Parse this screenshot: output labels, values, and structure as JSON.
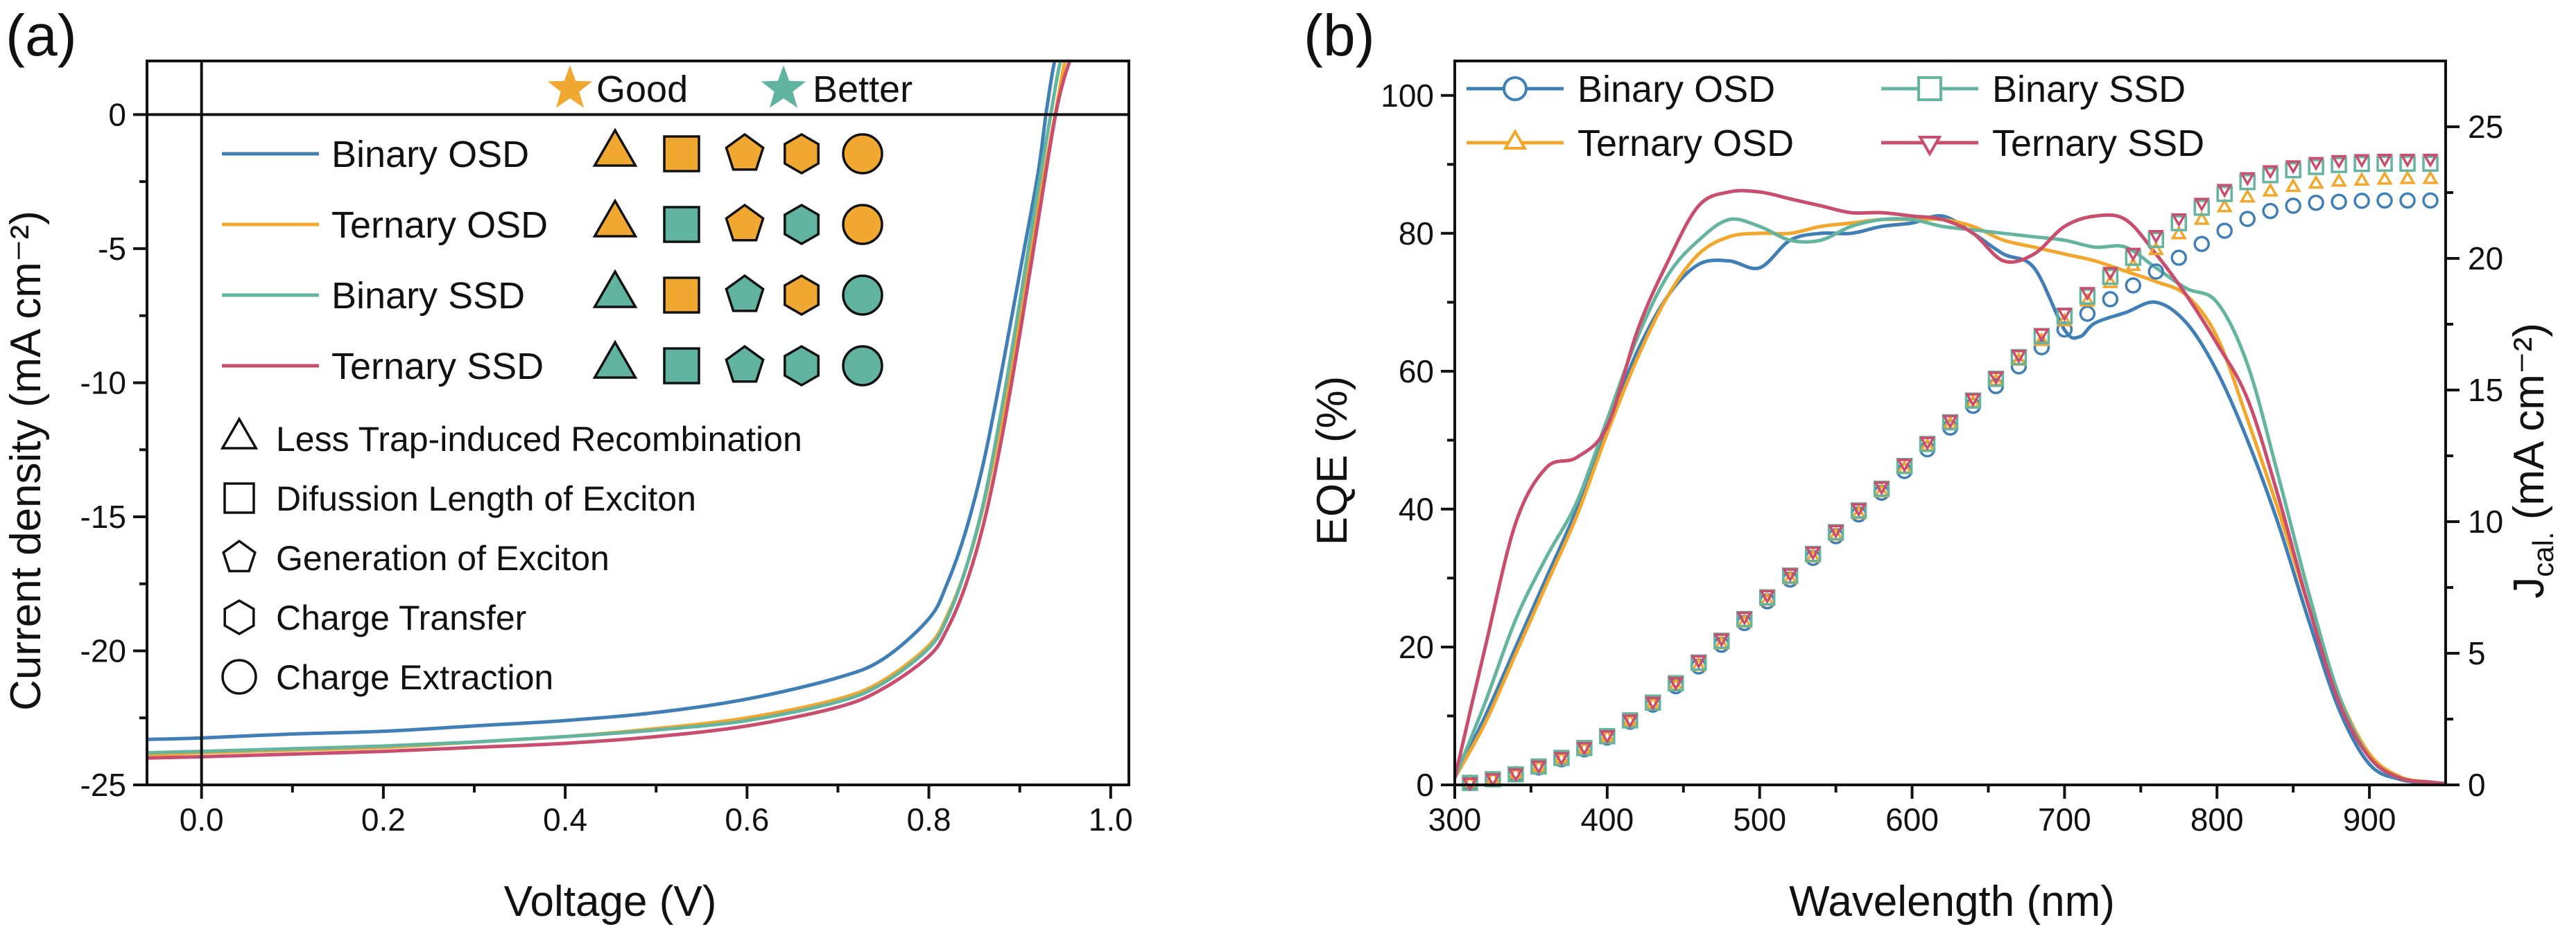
{
  "colors": {
    "binary_osd": "#3f7fb5",
    "ternary_osd": "#f2a72c",
    "binary_ssd": "#64b4a0",
    "ternary_ssd": "#c94d6d",
    "good": "#f0a830",
    "better": "#5fb39f"
  },
  "chart_data": [
    {
      "panel": "(a)",
      "type": "line",
      "xlabel": "Voltage (V)",
      "ylabel": "Current density (mA cm⁻²)",
      "xlim": [
        -0.06,
        1.02
      ],
      "ylim": [
        -25,
        2
      ],
      "xticks": [
        "0.0",
        "0.2",
        "0.4",
        "0.6",
        "0.8",
        "1.0"
      ],
      "xtick_values": [
        0.0,
        0.2,
        0.4,
        0.6,
        0.8,
        1.0
      ],
      "yticks": [
        "0",
        "-5",
        "-10",
        "-15",
        "-20",
        "-25"
      ],
      "ytick_values": [
        0,
        -5,
        -10,
        -15,
        -20,
        -25
      ],
      "grid": false,
      "legend_position": "top-left inside",
      "key_labels": {
        "good": "Good",
        "better": "Better"
      },
      "series": [
        {
          "name": "Binary OSD",
          "color_key": "binary_osd",
          "x": [
            -0.06,
            0.0,
            0.1,
            0.2,
            0.3,
            0.4,
            0.5,
            0.6,
            0.7,
            0.75,
            0.8,
            0.82,
            0.84,
            0.86,
            0.88,
            0.9,
            0.92,
            0.93,
            0.94,
            0.95
          ],
          "y": [
            -23.3,
            -23.25,
            -23.1,
            -23.0,
            -22.8,
            -22.6,
            -22.3,
            -21.8,
            -21.0,
            -20.3,
            -18.8,
            -17.5,
            -15.6,
            -13.0,
            -9.6,
            -5.9,
            -2.2,
            0.3,
            2.2,
            2.5
          ],
          "markers": {
            "triangle": "good",
            "square": "good",
            "pentagon": "good",
            "hexagon": "good",
            "circle": "good"
          }
        },
        {
          "name": "Ternary OSD",
          "color_key": "ternary_osd",
          "x": [
            -0.06,
            0.0,
            0.1,
            0.2,
            0.3,
            0.4,
            0.5,
            0.6,
            0.7,
            0.75,
            0.8,
            0.82,
            0.84,
            0.86,
            0.88,
            0.9,
            0.92,
            0.94,
            0.95,
            0.96
          ],
          "y": [
            -23.9,
            -23.8,
            -23.7,
            -23.6,
            -23.4,
            -23.2,
            -22.9,
            -22.5,
            -21.8,
            -21.1,
            -19.8,
            -18.7,
            -17.0,
            -14.6,
            -11.4,
            -7.6,
            -3.5,
            0.2,
            2.0,
            2.5
          ],
          "markers": {
            "triangle": "good",
            "square": "better",
            "pentagon": "good",
            "hexagon": "better",
            "circle": "good"
          }
        },
        {
          "name": "Binary SSD",
          "color_key": "binary_ssd",
          "x": [
            -0.06,
            0.0,
            0.1,
            0.2,
            0.3,
            0.4,
            0.5,
            0.6,
            0.7,
            0.75,
            0.8,
            0.82,
            0.84,
            0.86,
            0.88,
            0.9,
            0.92,
            0.935,
            0.945,
            0.955
          ],
          "y": [
            -23.8,
            -23.75,
            -23.65,
            -23.55,
            -23.4,
            -23.2,
            -22.95,
            -22.6,
            -21.9,
            -21.2,
            -19.9,
            -18.8,
            -17.0,
            -14.5,
            -11.0,
            -7.0,
            -2.8,
            0.2,
            2.0,
            2.5
          ],
          "markers": {
            "triangle": "better",
            "square": "good",
            "pentagon": "better",
            "hexagon": "good",
            "circle": "better"
          }
        },
        {
          "name": "Ternary SSD",
          "color_key": "ternary_ssd",
          "x": [
            -0.06,
            0.0,
            0.1,
            0.2,
            0.3,
            0.4,
            0.5,
            0.6,
            0.7,
            0.75,
            0.8,
            0.82,
            0.84,
            0.86,
            0.88,
            0.9,
            0.92,
            0.94,
            0.955,
            0.965
          ],
          "y": [
            -24.0,
            -23.95,
            -23.85,
            -23.75,
            -23.6,
            -23.45,
            -23.2,
            -22.8,
            -22.1,
            -21.4,
            -20.2,
            -19.2,
            -17.6,
            -15.3,
            -12.1,
            -8.2,
            -4.0,
            0.1,
            2.0,
            2.5
          ],
          "markers": {
            "triangle": "better",
            "square": "better",
            "pentagon": "better",
            "hexagon": "better",
            "circle": "better"
          }
        }
      ],
      "notes": [
        {
          "shape": "triangle",
          "text": "Less Trap-induced Recombination"
        },
        {
          "shape": "square",
          "text": "Difussion Length of Exciton"
        },
        {
          "shape": "pentagon",
          "text": "Generation of Exciton"
        },
        {
          "shape": "hexagon",
          "text": "Charge Transfer"
        },
        {
          "shape": "circle",
          "text": "Charge Extraction"
        }
      ]
    },
    {
      "panel": "(b)",
      "type": "line",
      "xlabel": "Wavelength (nm)",
      "ylabel": "EQE (%)",
      "y2label": "J",
      "y2label_sub": "cal.",
      "y2label_unit": " (mA cm⁻²)",
      "xlim": [
        300,
        950
      ],
      "ylim": [
        0,
        105
      ],
      "y2lim": [
        0,
        27.5
      ],
      "xticks": [
        "300",
        "400",
        "500",
        "600",
        "700",
        "800",
        "900"
      ],
      "xtick_values": [
        300,
        400,
        500,
        600,
        700,
        800,
        900
      ],
      "yticks": [
        "0",
        "20",
        "40",
        "60",
        "80",
        "100"
      ],
      "ytick_values": [
        0,
        20,
        40,
        60,
        80,
        100
      ],
      "y2ticks": [
        "0",
        "5",
        "10",
        "15",
        "20",
        "25"
      ],
      "y2tick_values": [
        0,
        5,
        10,
        15,
        20,
        25
      ],
      "grid": false,
      "legend_position": "top inside, two columns",
      "series": [
        {
          "name": "Binary OSD",
          "color_key": "binary_osd",
          "marker": "circle",
          "x": [
            300,
            320,
            340,
            360,
            380,
            400,
            420,
            440,
            460,
            480,
            500,
            520,
            540,
            560,
            580,
            600,
            620,
            640,
            660,
            680,
            700,
            710,
            720,
            740,
            760,
            780,
            800,
            820,
            840,
            860,
            880,
            900,
            920,
            940,
            950
          ],
          "eqe": [
            1,
            10,
            20,
            30,
            40,
            52,
            63,
            71,
            75.5,
            76,
            75,
            79,
            80,
            80,
            81,
            81.5,
            82.5,
            80,
            77,
            75,
            66,
            65,
            67,
            68.5,
            70,
            67,
            60,
            50,
            38,
            24,
            11,
            3,
            0.8,
            0.3,
            0.2
          ],
          "jsc": [
            0,
            0.15,
            0.4,
            0.75,
            1.2,
            1.8,
            2.6,
            3.5,
            4.5,
            5.6,
            6.7,
            7.8,
            8.9,
            10.0,
            11.1,
            12.2,
            13.3,
            14.4,
            15.4,
            16.4,
            17.3,
            17.7,
            18.1,
            18.8,
            19.5,
            20.2,
            20.9,
            21.5,
            21.9,
            22.1,
            22.15,
            22.2,
            22.2,
            22.2,
            22.2
          ]
        },
        {
          "name": "Ternary OSD",
          "color_key": "ternary_osd",
          "marker": "triangle-up",
          "x": [
            300,
            320,
            340,
            360,
            380,
            400,
            420,
            440,
            460,
            480,
            500,
            520,
            540,
            560,
            580,
            600,
            620,
            640,
            660,
            680,
            700,
            720,
            740,
            760,
            780,
            800,
            820,
            840,
            860,
            880,
            900,
            920,
            940,
            950
          ],
          "eqe": [
            1,
            9,
            19,
            29,
            39,
            51,
            62,
            71,
            77,
            79.5,
            80,
            80,
            81,
            81.5,
            82,
            82,
            82,
            81,
            79,
            78,
            77,
            76,
            74.5,
            73,
            71,
            65,
            53,
            40,
            26,
            13,
            4.5,
            1.2,
            0.4,
            0.2
          ],
          "jsc": [
            0,
            0.15,
            0.4,
            0.75,
            1.2,
            1.8,
            2.6,
            3.5,
            4.5,
            5.6,
            6.7,
            7.8,
            8.9,
            10.0,
            11.1,
            12.3,
            13.4,
            14.5,
            15.6,
            16.6,
            17.6,
            18.6,
            19.5,
            20.3,
            21.1,
            21.8,
            22.3,
            22.6,
            22.8,
            22.9,
            22.95,
            23.0,
            23.0,
            23.0
          ]
        },
        {
          "name": "Binary SSD",
          "color_key": "binary_ssd",
          "marker": "square",
          "x": [
            300,
            320,
            340,
            360,
            380,
            400,
            420,
            440,
            460,
            480,
            500,
            520,
            540,
            560,
            580,
            600,
            620,
            640,
            660,
            680,
            700,
            720,
            740,
            760,
            780,
            800,
            820,
            840,
            860,
            880,
            900,
            920,
            940,
            950
          ],
          "eqe": [
            1,
            12,
            24,
            33,
            41,
            53,
            65,
            74,
            79,
            82,
            81,
            79,
            79,
            81,
            82,
            82,
            81,
            80.5,
            80,
            79.5,
            79,
            78,
            78,
            75,
            72,
            70,
            61,
            45,
            28,
            13,
            4,
            1,
            0.4,
            0.2
          ],
          "jsc": [
            0,
            0.15,
            0.4,
            0.8,
            1.25,
            1.85,
            2.65,
            3.6,
            4.65,
            5.75,
            6.85,
            7.95,
            9.05,
            10.15,
            11.25,
            12.4,
            13.5,
            14.6,
            15.7,
            16.8,
            17.8,
            18.8,
            19.8,
            20.7,
            21.55,
            22.3,
            22.9,
            23.25,
            23.45,
            23.55,
            23.6,
            23.6,
            23.6,
            23.6
          ]
        },
        {
          "name": "Ternary SSD",
          "color_key": "ternary_ssd",
          "marker": "triangle-down",
          "x": [
            300,
            320,
            340,
            360,
            380,
            400,
            420,
            440,
            460,
            480,
            500,
            520,
            540,
            560,
            580,
            600,
            620,
            640,
            660,
            680,
            700,
            720,
            740,
            760,
            780,
            800,
            820,
            840,
            860,
            880,
            900,
            920,
            940,
            950
          ],
          "eqe": [
            1,
            20,
            38,
            46,
            47.5,
            52,
            66,
            76,
            84,
            86,
            86,
            85,
            84,
            83,
            83,
            82.5,
            82,
            80,
            76,
            77,
            81,
            82.5,
            82,
            77,
            71,
            64,
            56,
            42,
            26,
            12,
            4,
            1,
            0.4,
            0.2
          ],
          "jsc": [
            0,
            0.2,
            0.45,
            0.85,
            1.3,
            1.9,
            2.7,
            3.65,
            4.75,
            5.85,
            6.95,
            8.05,
            9.15,
            10.25,
            11.35,
            12.5,
            13.6,
            14.7,
            15.8,
            16.9,
            17.95,
            19.0,
            20.0,
            20.9,
            21.75,
            22.5,
            23.1,
            23.45,
            23.65,
            23.75,
            23.8,
            23.8,
            23.8,
            23.8
          ]
        }
      ]
    }
  ]
}
